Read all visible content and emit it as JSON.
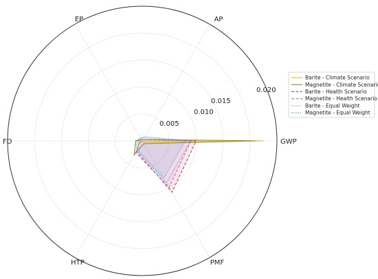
{
  "chart_data": {
    "type": "radar",
    "axes": [
      "GWP",
      "AP",
      "EP",
      "FD",
      "HTP",
      "PMF"
    ],
    "r_ticks": [
      0.005,
      0.01,
      0.015,
      0.02
    ],
    "r_tick_labels": [
      "0.005",
      "0.010",
      "0.015",
      "0.020"
    ],
    "rlim": [
      0,
      0.025
    ],
    "grid": true,
    "legend_position": "right",
    "series": [
      {
        "name": "Barite - Climate Scenario",
        "color": "#E5C12B",
        "linestyle": "solid",
        "fill": true,
        "values": [
          0.0225,
          0.0003,
          0.0003,
          0.0014,
          0.0003,
          0.0003
        ]
      },
      {
        "name": "Magnetite - Climate Scenario",
        "color": "#9A8F2A",
        "linestyle": "solid",
        "fill": false,
        "values": [
          0.021,
          0.0003,
          0.0003,
          0.0012,
          0.003,
          0.0006
        ]
      },
      {
        "name": "Barite - Health Scenario",
        "color": "#D6405C",
        "linestyle": "dashed",
        "fill": true,
        "values": [
          0.01,
          0.0003,
          0.0003,
          0.0004,
          0.0022,
          0.011
        ]
      },
      {
        "name": "Magnetite - Health Scenario",
        "color": "#C86BD8",
        "linestyle": "dashed",
        "fill": true,
        "values": [
          0.009,
          0.0003,
          0.0003,
          0.0004,
          0.0025,
          0.01
        ]
      },
      {
        "name": "Barite - Equal Weight",
        "color": "#3FA3D6",
        "linestyle": "dotted",
        "fill": true,
        "values": [
          0.008,
          0.0007,
          0.0006,
          0.0008,
          0.0018,
          0.008
        ]
      },
      {
        "name": "Magnetite - Equal Weight",
        "color": "#29A7A0",
        "linestyle": "dotted",
        "fill": false,
        "values": [
          0.009,
          0.0009,
          0.0006,
          0.0012,
          0.002,
          0.009
        ]
      }
    ]
  }
}
